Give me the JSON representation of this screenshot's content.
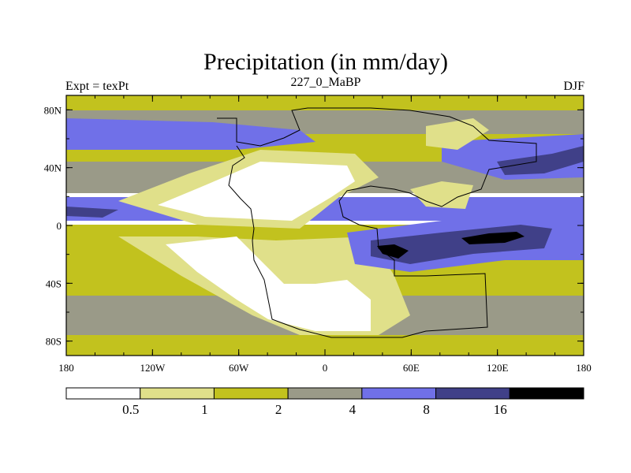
{
  "chart_data": {
    "type": "contour-map",
    "title": "Precipitation (in mm/day)",
    "left_label": "Expt = texPt",
    "center_label": "227_0_MaBP",
    "right_label": "DJF",
    "x_ticks": [
      "180",
      "120W",
      "60W",
      "0",
      "60E",
      "120E",
      "180"
    ],
    "x_tick_values": [
      -180,
      -120,
      -60,
      0,
      60,
      120,
      180
    ],
    "y_ticks": [
      "80N",
      "40N",
      "0",
      "40S",
      "80S"
    ],
    "y_tick_values": [
      80,
      40,
      0,
      -40,
      -80
    ],
    "xlim": [
      -180,
      180
    ],
    "ylim": [
      -90,
      90
    ],
    "levels": [
      "0.5",
      "1",
      "2",
      "4",
      "8",
      "16"
    ],
    "colors": [
      "#ffffff",
      "#e0e08a",
      "#c2c21e",
      "#9a9a88",
      "#7070e8",
      "#404088",
      "#000000"
    ]
  }
}
